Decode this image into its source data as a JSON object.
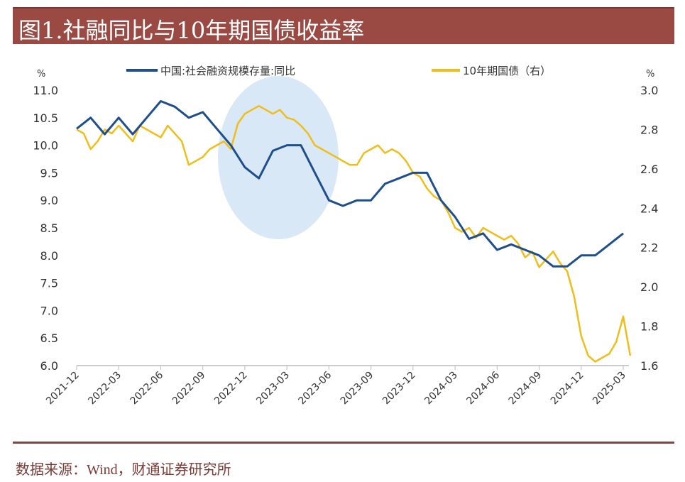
{
  "title": "图1.社融同比与10年期国债收益率",
  "source": "数据来源：Wind，财通证券研究所",
  "chart_data": {
    "type": "line",
    "title": "图1.社融同比与10年期国债收益率",
    "left_unit": "%",
    "right_unit": "%",
    "ylim_left": [
      6.0,
      11.0
    ],
    "ylim_right": [
      1.6,
      3.0
    ],
    "yticks_left": [
      "11.0",
      "10.5",
      "10.0",
      "9.5",
      "9.0",
      "8.5",
      "8.0",
      "7.5",
      "7.0",
      "6.5",
      "6.0"
    ],
    "yticks_right": [
      "3.0",
      "2.8",
      "2.6",
      "2.4",
      "2.2",
      "2.0",
      "1.8",
      "1.6"
    ],
    "xticks": [
      "2021-12",
      "2022-03",
      "2022-06",
      "2022-09",
      "2022-12",
      "2023-03",
      "2023-06",
      "2023-09",
      "2023-12",
      "2024-03",
      "2024-06",
      "2024-09",
      "2024-12",
      "2025-03"
    ],
    "legend_position": "top",
    "grid": false,
    "highlight": "light-blue ellipse over 2022-10 to 2023-06",
    "series": [
      {
        "name": "中国:社会融资规模存量:同比",
        "axis": "left",
        "color": "#1f4e8c",
        "frequency": "monthly",
        "start": "2021-12",
        "values": [
          10.3,
          10.5,
          10.2,
          10.5,
          10.2,
          10.5,
          10.8,
          10.7,
          10.5,
          10.6,
          10.3,
          10.0,
          9.6,
          9.4,
          9.9,
          10.0,
          10.0,
          9.5,
          9.0,
          8.9,
          9.0,
          9.0,
          9.3,
          9.4,
          9.5,
          9.5,
          9.0,
          8.7,
          8.3,
          8.4,
          8.1,
          8.2,
          8.1,
          8.0,
          7.8,
          7.8,
          8.0,
          8.0,
          8.2,
          8.4
        ]
      },
      {
        "name": "10年期国债（右）",
        "axis": "right",
        "color": "#f0be1a",
        "frequency": "semi-monthly",
        "start": "2021-12",
        "values": [
          2.8,
          2.78,
          2.7,
          2.74,
          2.8,
          2.78,
          2.82,
          2.78,
          2.74,
          2.82,
          2.8,
          2.78,
          2.76,
          2.82,
          2.78,
          2.74,
          2.62,
          2.64,
          2.66,
          2.7,
          2.72,
          2.74,
          2.7,
          2.83,
          2.88,
          2.9,
          2.92,
          2.9,
          2.88,
          2.9,
          2.86,
          2.85,
          2.82,
          2.78,
          2.72,
          2.7,
          2.68,
          2.66,
          2.64,
          2.62,
          2.62,
          2.68,
          2.7,
          2.72,
          2.68,
          2.7,
          2.68,
          2.64,
          2.58,
          2.56,
          2.5,
          2.46,
          2.44,
          2.38,
          2.3,
          2.28,
          2.3,
          2.25,
          2.3,
          2.28,
          2.26,
          2.24,
          2.26,
          2.22,
          2.15,
          2.18,
          2.1,
          2.14,
          2.18,
          2.12,
          2.08,
          1.95,
          1.75,
          1.65,
          1.62,
          1.64,
          1.66,
          1.72,
          1.85,
          1.65
        ]
      }
    ]
  }
}
